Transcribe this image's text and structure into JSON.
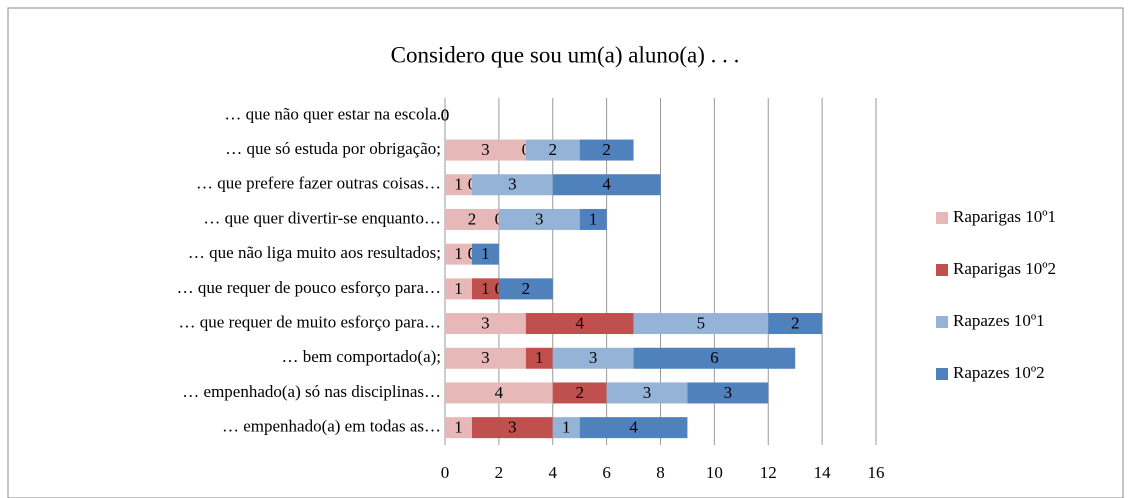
{
  "chart_data": {
    "type": "stacked-bar-horizontal",
    "title": "Considero que sou um(a) aluno(a) . . .",
    "categories": [
      "… que não quer estar na escola.",
      "… que só estuda por obrigação;",
      "… que prefere fazer outras coisas…",
      "… que quer divertir-se enquanto…",
      "… que não liga muito aos resultados;",
      "… que requer de pouco esforço para…",
      "… que requer de muito esforço para…",
      "… bem comportado(a);",
      "… empenhado(a) só nas disciplinas…",
      "… empenhado(a) em todas as…"
    ],
    "series": [
      {
        "name": "Raparigas 10º1",
        "color": "#e6b9b8",
        "values": [
          0,
          3,
          1,
          2,
          1,
          1,
          3,
          3,
          4,
          1
        ]
      },
      {
        "name": "Raparigas 10º2",
        "color": "#c0504d",
        "values": [
          0,
          0,
          0,
          0,
          0,
          1,
          4,
          1,
          2,
          3
        ]
      },
      {
        "name": "Rapazes 10º1",
        "color": "#95b3d7",
        "values": [
          0,
          2,
          3,
          3,
          0,
          0,
          5,
          3,
          3,
          1
        ]
      },
      {
        "name": "Rapazes 10º2",
        "color": "#4f81bd",
        "values": [
          0,
          2,
          4,
          1,
          1,
          2,
          2,
          6,
          3,
          4
        ]
      }
    ],
    "xlim": [
      0,
      16
    ],
    "xticks": [
      0,
      2,
      4,
      6,
      8,
      10,
      12,
      14,
      16
    ],
    "grid": true,
    "legend": "right"
  }
}
